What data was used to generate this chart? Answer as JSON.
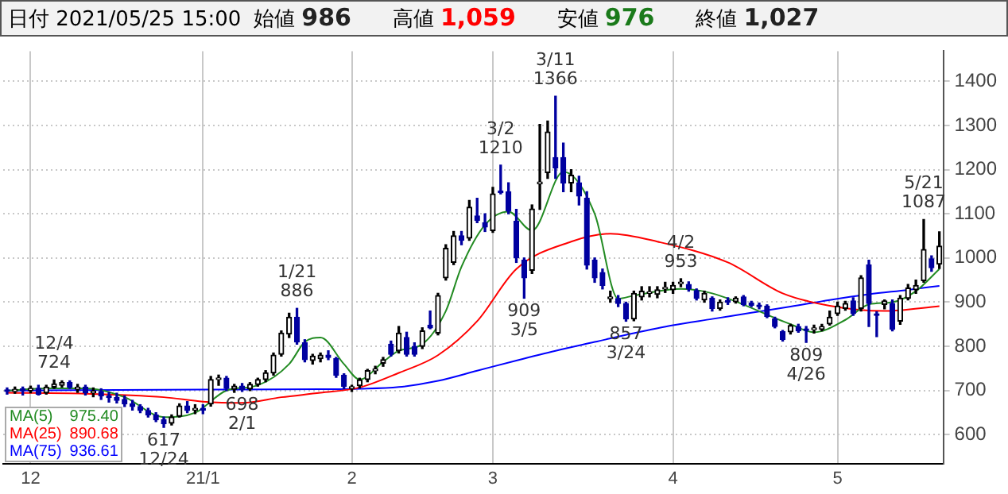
{
  "chart_data": {
    "type": "candlestick",
    "title": "日付 2021/05/25 15:00",
    "categories": [
      null,
      null,
      null,
      "12",
      null,
      null,
      null,
      null,
      null,
      null,
      null,
      null,
      null,
      null,
      null,
      null,
      null,
      null,
      null,
      null,
      null,
      null,
      null,
      null,
      null,
      "21/1",
      null,
      null,
      null,
      null,
      null,
      null,
      null,
      null,
      null,
      null,
      null,
      null,
      null,
      null,
      null,
      null,
      null,
      null,
      "2",
      null,
      null,
      null,
      null,
      null,
      null,
      null,
      null,
      null,
      null,
      null,
      null,
      null,
      null,
      null,
      null,
      null,
      "3",
      null,
      null,
      null,
      null,
      null,
      null,
      null,
      null,
      null,
      null,
      null,
      null,
      null,
      null,
      null,
      null,
      null,
      null,
      null,
      null,
      null,
      null,
      "4",
      null,
      null,
      null,
      null,
      null,
      null,
      null,
      null,
      null,
      null,
      null,
      null,
      null,
      null,
      null,
      null,
      null,
      null,
      null,
      null,
      "5",
      null,
      null,
      null,
      null,
      null,
      null,
      null,
      null,
      null,
      null,
      null,
      null,
      null
    ],
    "ohlc": [
      [
        700,
        706,
        692,
        698
      ],
      [
        698,
        708,
        694,
        703
      ],
      [
        703,
        708,
        690,
        700
      ],
      [
        700,
        710,
        695,
        705
      ],
      [
        705,
        712,
        690,
        692
      ],
      [
        695,
        712,
        692,
        708
      ],
      [
        708,
        724,
        705,
        715
      ],
      [
        712,
        722,
        708,
        718
      ],
      [
        718,
        722,
        705,
        708
      ],
      [
        703,
        714,
        696,
        708
      ],
      [
        708,
        712,
        690,
        695
      ],
      [
        695,
        706,
        686,
        698
      ],
      [
        698,
        704,
        680,
        688
      ],
      [
        688,
        696,
        674,
        684
      ],
      [
        684,
        694,
        672,
        678
      ],
      [
        680,
        688,
        664,
        670
      ],
      [
        670,
        678,
        656,
        664
      ],
      [
        664,
        668,
        650,
        655
      ],
      [
        655,
        660,
        640,
        645
      ],
      [
        645,
        650,
        630,
        634
      ],
      [
        634,
        640,
        617,
        625
      ],
      [
        626,
        645,
        622,
        640
      ],
      [
        642,
        670,
        640,
        665
      ],
      [
        665,
        675,
        650,
        655
      ],
      [
        656,
        668,
        648,
        660
      ],
      [
        660,
        668,
        648,
        656
      ],
      [
        670,
        732,
        665,
        725
      ],
      [
        725,
        735,
        712,
        728
      ],
      [
        728,
        732,
        700,
        705
      ],
      [
        703,
        714,
        696,
        710
      ],
      [
        710,
        716,
        698,
        702
      ],
      [
        704,
        718,
        700,
        714
      ],
      [
        714,
        728,
        710,
        725
      ],
      [
        725,
        745,
        720,
        740
      ],
      [
        740,
        785,
        735,
        780
      ],
      [
        782,
        835,
        778,
        830
      ],
      [
        828,
        875,
        820,
        866
      ],
      [
        866,
        886,
        805,
        810
      ],
      [
        808,
        815,
        765,
        770
      ],
      [
        768,
        782,
        760,
        778
      ],
      [
        772,
        785,
        765,
        780
      ],
      [
        780,
        790,
        770,
        775
      ],
      [
        772,
        775,
        730,
        735
      ],
      [
        735,
        738,
        705,
        710
      ],
      [
        705,
        712,
        698,
        708
      ],
      [
        711,
        728,
        706,
        724
      ],
      [
        725,
        748,
        720,
        745
      ],
      [
        745,
        755,
        738,
        748
      ],
      [
        762,
        775,
        755,
        770
      ],
      [
        805,
        812,
        778,
        782
      ],
      [
        790,
        845,
        785,
        830
      ],
      [
        820,
        832,
        778,
        782
      ],
      [
        800,
        808,
        778,
        782
      ],
      [
        800,
        842,
        795,
        835
      ],
      [
        848,
        880,
        840,
        842
      ],
      [
        830,
        920,
        826,
        915
      ],
      [
        955,
        1030,
        950,
        1022
      ],
      [
        990,
        1060,
        985,
        1050
      ],
      [
        1050,
        1060,
        1030,
        1040
      ],
      [
        1045,
        1130,
        1040,
        1115
      ],
      [
        1095,
        1135,
        1080,
        1085
      ],
      [
        1080,
        1100,
        1060,
        1070
      ],
      [
        1062,
        1160,
        1058,
        1145
      ],
      [
        1150,
        1210,
        1145,
        1148
      ],
      [
        1150,
        1170,
        1100,
        1106
      ],
      [
        1083,
        1110,
        990,
        1001
      ],
      [
        995,
        1000,
        909,
        955
      ],
      [
        972,
        1120,
        965,
        1111
      ],
      [
        1168,
        1302,
        1110,
        1172
      ],
      [
        1193,
        1310,
        1180,
        1285
      ],
      [
        1227,
        1366,
        1180,
        1204
      ],
      [
        1227,
        1260,
        1150,
        1170
      ],
      [
        1170,
        1200,
        1150,
        1187
      ],
      [
        1170,
        1185,
        1120,
        1140
      ],
      [
        1135,
        1150,
        975,
        984
      ],
      [
        995,
        1000,
        945,
        955
      ],
      [
        967,
        975,
        930,
        938
      ],
      [
        908,
        925,
        900,
        912
      ],
      [
        908,
        915,
        890,
        897
      ],
      [
        897,
        900,
        857,
        862
      ],
      [
        862,
        925,
        858,
        920
      ],
      [
        912,
        935,
        905,
        925
      ],
      [
        920,
        935,
        912,
        921
      ],
      [
        918,
        935,
        910,
        928
      ],
      [
        930,
        945,
        922,
        931
      ],
      [
        928,
        945,
        920,
        938
      ],
      [
        942,
        953,
        935,
        944
      ],
      [
        940,
        946,
        925,
        930
      ],
      [
        926,
        930,
        905,
        909
      ],
      [
        905,
        925,
        900,
        920
      ],
      [
        909,
        912,
        880,
        886
      ],
      [
        886,
        905,
        882,
        900
      ],
      [
        901,
        910,
        895,
        900
      ],
      [
        901,
        912,
        898,
        909
      ],
      [
        912,
        915,
        892,
        895
      ],
      [
        898,
        902,
        890,
        893
      ],
      [
        892,
        898,
        885,
        890
      ],
      [
        891,
        894,
        865,
        868
      ],
      [
        862,
        866,
        842,
        845
      ],
      [
        833,
        836,
        812,
        816
      ],
      [
        833,
        850,
        828,
        847
      ],
      [
        845,
        850,
        832,
        835
      ],
      [
        838,
        845,
        809,
        836
      ],
      [
        838,
        848,
        830,
        839
      ],
      [
        839,
        850,
        835,
        845
      ],
      [
        851,
        880,
        848,
        866
      ],
      [
        874,
        900,
        870,
        891
      ],
      [
        886,
        902,
        882,
        897
      ],
      [
        903,
        910,
        870,
        874
      ],
      [
        886,
        960,
        880,
        955
      ],
      [
        984,
        995,
        845,
        897
      ],
      [
        872,
        878,
        822,
        870
      ],
      [
        895,
        905,
        885,
        903
      ],
      [
        897,
        905,
        835,
        839
      ],
      [
        857,
        915,
        850,
        909
      ],
      [
        909,
        940,
        905,
        932
      ],
      [
        928,
        950,
        920,
        938
      ],
      [
        949,
        1087,
        945,
        1019
      ],
      [
        998,
        1005,
        970,
        978
      ],
      [
        986,
        1059,
        976,
        1027
      ]
    ],
    "series": [
      {
        "name": "MA(5)",
        "type": "line",
        "color": "#228b22",
        "values": [
          700,
          null,
          null,
          null,
          null,
          705,
          null,
          null,
          null,
          null,
          705,
          null,
          null,
          null,
          null,
          685,
          null,
          null,
          null,
          null,
          640,
          null,
          null,
          null,
          650,
          null,
          null,
          null,
          700,
          null,
          null,
          null,
          712,
          null,
          null,
          null,
          760,
          null,
          810,
          null,
          820,
          null,
          null,
          760,
          null,
          725,
          null,
          null,
          765,
          null,
          790,
          null,
          null,
          805,
          null,
          null,
          880,
          null,
          980,
          null,
          null,
          1075,
          null,
          null,
          1105,
          null,
          null,
          1062,
          null,
          null,
          null,
          1195,
          null,
          null,
          null,
          1100,
          null,
          null,
          908,
          null,
          915,
          null,
          null,
          null,
          null,
          null,
          930,
          null,
          null,
          null,
          920,
          null,
          null,
          null,
          null,
          null,
          null,
          null,
          null,
          null,
          850,
          null,
          null,
          832,
          null,
          null,
          null,
          860,
          null,
          null,
          895,
          null,
          null,
          900,
          null,
          null,
          925,
          null,
          null,
          975
        ]
      },
      {
        "name": "MA(25)",
        "type": "line",
        "color": "#ff0000",
        "values": [
          695,
          null,
          null,
          null,
          null,
          null,
          null,
          null,
          null,
          null,
          693,
          null,
          null,
          null,
          null,
          null,
          null,
          null,
          null,
          null,
          685,
          null,
          null,
          null,
          null,
          675,
          null,
          null,
          null,
          null,
          672,
          null,
          null,
          null,
          null,
          685,
          null,
          null,
          null,
          null,
          695,
          null,
          null,
          null,
          null,
          707,
          null,
          null,
          null,
          null,
          740,
          null,
          null,
          null,
          null,
          780,
          null,
          null,
          null,
          null,
          857,
          null,
          null,
          null,
          null,
          975,
          null,
          null,
          null,
          null,
          null,
          null,
          1037,
          null,
          null,
          null,
          null,
          1055,
          null,
          null,
          null,
          null,
          null,
          1037,
          null,
          null,
          null,
          null,
          null,
          null,
          null,
          null,
          990,
          null,
          null,
          null,
          null,
          null,
          null,
          920,
          null,
          null,
          null,
          null,
          null,
          892,
          null,
          null,
          null,
          null,
          null,
          null,
          880,
          null,
          null,
          null,
          null,
          null,
          null,
          891
        ]
      },
      {
        "name": "MA(75)",
        "type": "line",
        "color": "#0000ff",
        "values": [
          700,
          null,
          null,
          null,
          null,
          null,
          null,
          null,
          null,
          null,
          null,
          null,
          null,
          null,
          null,
          null,
          null,
          null,
          null,
          null,
          702,
          null,
          null,
          null,
          null,
          null,
          null,
          null,
          null,
          null,
          null,
          null,
          null,
          null,
          null,
          null,
          null,
          null,
          null,
          null,
          703,
          null,
          null,
          null,
          null,
          704,
          null,
          null,
          null,
          null,
          708,
          null,
          null,
          null,
          null,
          722,
          null,
          null,
          null,
          null,
          745,
          null,
          null,
          null,
          null,
          768,
          null,
          null,
          null,
          null,
          790,
          null,
          null,
          null,
          null,
          810,
          null,
          null,
          null,
          null,
          830,
          null,
          null,
          null,
          null,
          848,
          null,
          null,
          null,
          null,
          862,
          null,
          null,
          null,
          null,
          876,
          null,
          null,
          null,
          null,
          890,
          null,
          null,
          null,
          null,
          905,
          null,
          null,
          null,
          null,
          918,
          null,
          null,
          null,
          null,
          928,
          null,
          null,
          null,
          937
        ]
      }
    ],
    "ylim": [
      535,
      1468
    ],
    "yticks": [
      600,
      700,
      800,
      900,
      1000,
      1100,
      1200,
      1300,
      1400
    ],
    "grid": true,
    "legend": "bottom left",
    "annotations": [
      "始値 986",
      "高値 1,059",
      "安値 976",
      "終値 1,027",
      {
        "text": "12/4\n724",
        "y": 724
      },
      {
        "text": "617\n12/24",
        "y": 617
      },
      {
        "text": "1/21\n886",
        "y": 886
      },
      {
        "text": "698\n2/1",
        "y": 698
      },
      {
        "text": "3/2\n1210",
        "y": 1210
      },
      {
        "text": "909\n3/5",
        "y": 909
      },
      {
        "text": "3/11\n1366",
        "y": 1366
      },
      {
        "text": "857\n3/24",
        "y": 857
      },
      {
        "text": "4/2\n953",
        "y": 953
      },
      {
        "text": "809\n4/26",
        "y": 809
      },
      {
        "text": "5/21\n1087",
        "y": 1087
      },
      "975.40",
      "890.68",
      "936.61"
    ]
  }
}
